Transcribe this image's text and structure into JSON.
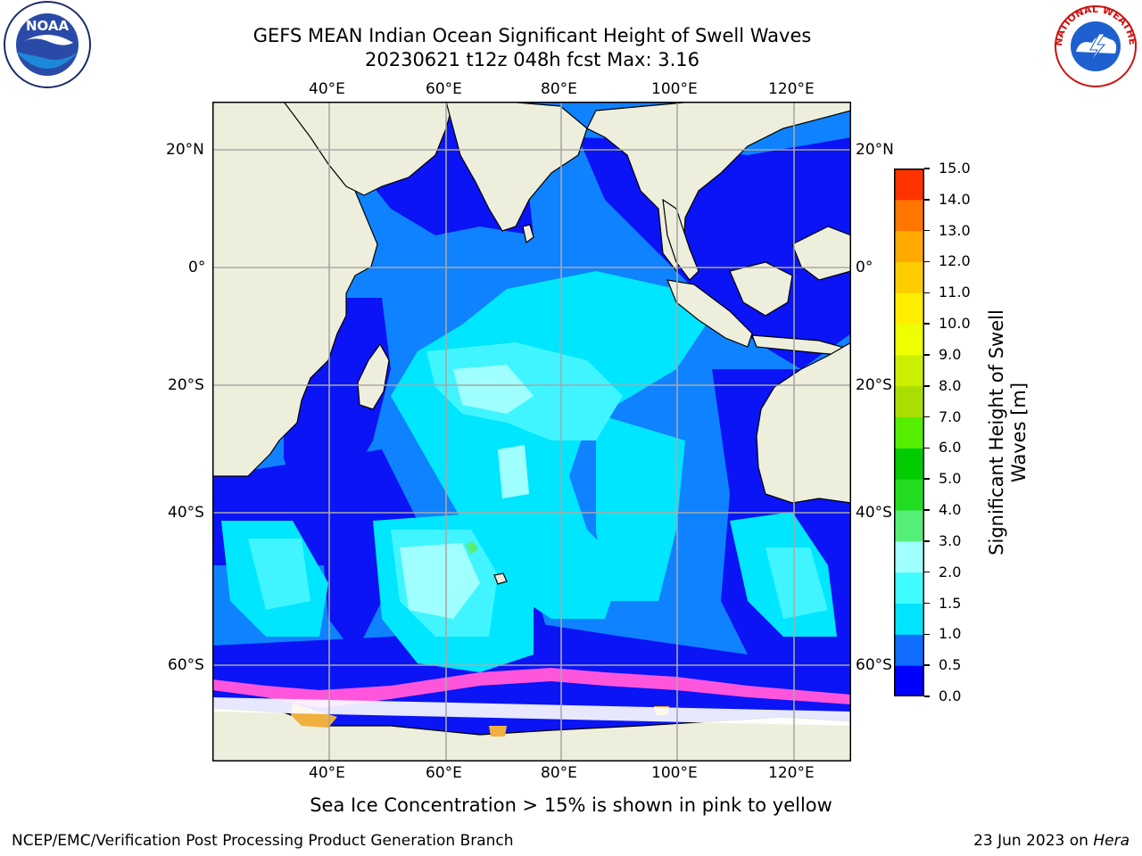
{
  "title": {
    "line1": "GEFS MEAN Indian Ocean Significant Height of Swell Waves",
    "line2": "20230621 t12z 048h fcst   Max: 3.16"
  },
  "map": {
    "lon_top_labels": [
      "40°E",
      "60°E",
      "80°E",
      "100°E",
      "120°E"
    ],
    "lon_bottom_labels": [
      "40°E",
      "60°E",
      "80°E",
      "100°E",
      "120°E"
    ],
    "lat_left_labels": [
      "20°N",
      "0°",
      "20°S",
      "40°S",
      "60°S"
    ],
    "lat_right_labels": [
      "20°N",
      "0°",
      "20°S",
      "40°S",
      "60°S"
    ],
    "colors": {
      "land": "#eeeedd",
      "ocean_0": "#0a14f5",
      "ocean_05": "#0f82ff",
      "ocean_1": "#00e6ff",
      "ocean_15": "#40f5ff",
      "ocean_2": "#a0ffff",
      "ice_pink": "#ff55dd",
      "ice_yellow": "#f0b040"
    }
  },
  "colorbar": {
    "title": "Significant Height of Swell Waves [m]",
    "levels": [
      "0.0",
      "0.5",
      "1.0",
      "1.5",
      "2.0",
      "3.0",
      "4.0",
      "5.0",
      "6.0",
      "7.0",
      "8.0",
      "9.0",
      "10.0",
      "11.0",
      "12.0",
      "13.0",
      "14.0",
      "15.0"
    ],
    "colors": [
      "#0000ff",
      "#0f6dff",
      "#00e5ff",
      "#40fbff",
      "#a0ffff",
      "#55ee77",
      "#22dd22",
      "#00cc00",
      "#55ee00",
      "#aadd00",
      "#ccee00",
      "#eeff00",
      "#ffee00",
      "#ffcc00",
      "#ffaa00",
      "#ff7700",
      "#ff3300"
    ]
  },
  "caption": "Sea Ice Concentration > 15% is shown in pink to yellow",
  "footer": {
    "left": "NCEP/EMC/Verification Post Processing Product Generation Branch",
    "right_prefix": "23 Jun 2023 on ",
    "right_host": "Hera"
  },
  "logos": {
    "noaa_text": "NOAA",
    "nws_text": "NATIONAL WEATHER SERVICE"
  }
}
